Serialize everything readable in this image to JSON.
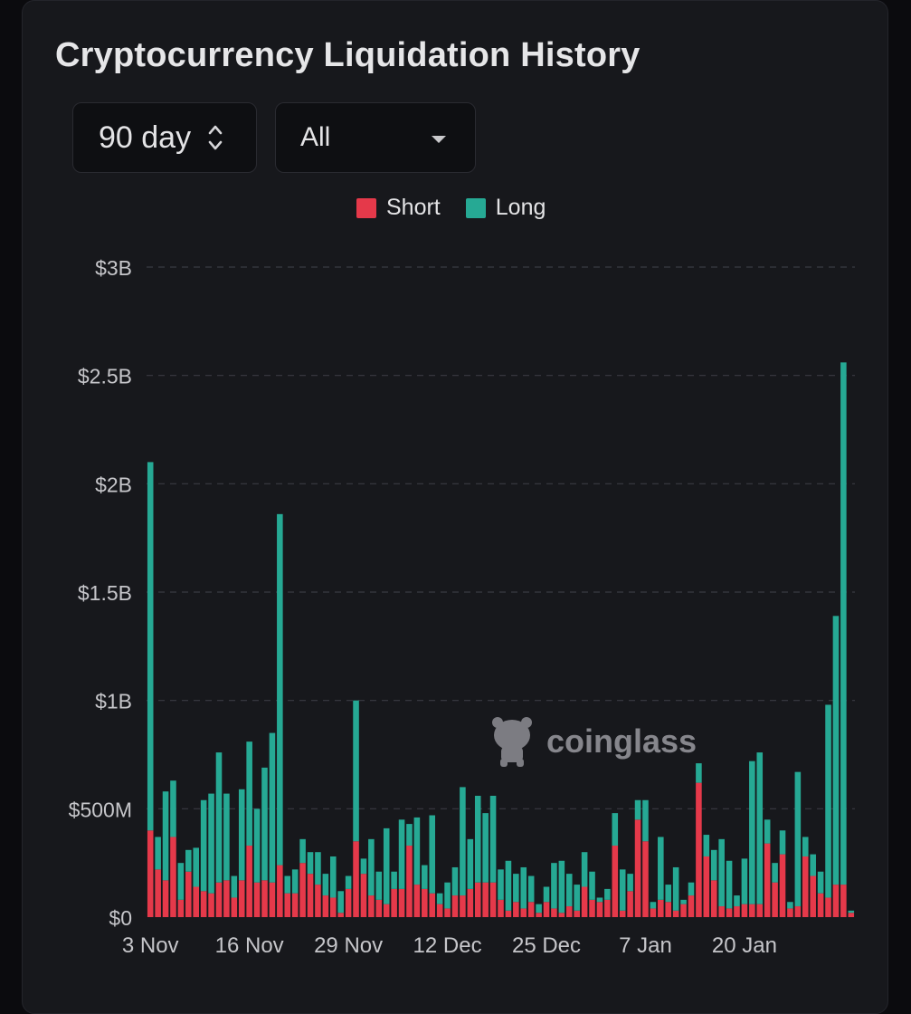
{
  "title": "Cryptocurrency Liquidation History",
  "controls": {
    "range_label": "90 day",
    "coin_label": "All"
  },
  "watermark": "coinglass",
  "colors": {
    "short": "#e5394a",
    "long": "#26a994",
    "grid": "#3a3b42",
    "axis_text": "#c6c6ca"
  },
  "chart_data": {
    "type": "bar",
    "stacked": true,
    "title": "Cryptocurrency Liquidation History",
    "legend": [
      "Short",
      "Long"
    ],
    "legend_position": "top-center",
    "ylim": [
      0,
      3000
    ],
    "y_unit": "M USD",
    "y_ticks": [
      0,
      500,
      1000,
      1500,
      2000,
      2500,
      3000
    ],
    "y_tick_labels": [
      "$0",
      "$500M",
      "$1B",
      "$1.5B",
      "$2B",
      "$2.5B",
      "$3B"
    ],
    "x_tick_labels": [
      "3 Nov",
      "16 Nov",
      "29 Nov",
      "12 Dec",
      "25 Dec",
      "7 Jan",
      "20 Jan"
    ],
    "x_tick_index": [
      0,
      13,
      26,
      39,
      52,
      65,
      78
    ],
    "grid": true,
    "series": [
      {
        "name": "Short",
        "values": [
          400,
          220,
          170,
          370,
          80,
          210,
          140,
          120,
          110,
          160,
          170,
          90,
          170,
          330,
          160,
          170,
          160,
          240,
          110,
          110,
          250,
          200,
          150,
          100,
          90,
          20,
          130,
          350,
          200,
          100,
          80,
          60,
          130,
          130,
          330,
          150,
          130,
          110,
          60,
          40,
          100,
          100,
          130,
          160,
          160,
          160,
          80,
          30,
          70,
          40,
          70,
          20,
          70,
          40,
          20,
          50,
          30,
          140,
          80,
          70,
          80,
          330,
          30,
          120,
          450,
          350,
          40,
          80,
          70,
          30,
          60,
          100,
          620,
          280,
          170,
          50,
          40,
          50,
          60,
          60,
          60,
          340,
          160,
          290,
          40,
          50,
          280,
          190,
          110,
          90,
          150,
          150,
          20
        ]
      },
      {
        "name": "Long",
        "values": [
          1700,
          150,
          410,
          260,
          170,
          100,
          180,
          420,
          460,
          600,
          400,
          100,
          420,
          480,
          340,
          520,
          690,
          1620,
          80,
          110,
          110,
          100,
          150,
          100,
          190,
          100,
          60,
          650,
          70,
          260,
          130,
          350,
          80,
          320,
          100,
          310,
          110,
          360,
          50,
          120,
          130,
          500,
          230,
          400,
          320,
          400,
          140,
          230,
          130,
          190,
          120,
          40,
          70,
          210,
          240,
          150,
          120,
          160,
          130,
          20,
          50,
          150,
          190,
          80,
          90,
          190,
          30,
          290,
          80,
          200,
          20,
          60,
          90,
          100,
          140,
          310,
          220,
          50,
          210,
          660,
          700,
          110,
          90,
          110,
          30,
          620,
          90,
          100,
          100,
          890,
          1240,
          2410,
          10
        ]
      }
    ]
  }
}
